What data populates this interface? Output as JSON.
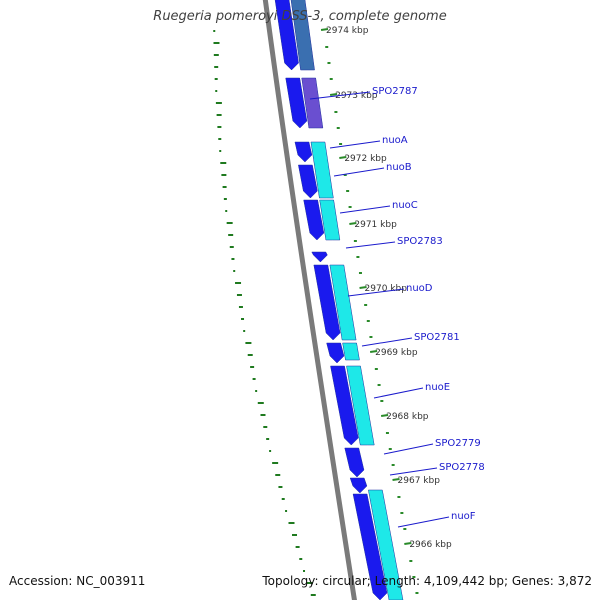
{
  "title": "Ruegeria pomeroyi DSS-3, complete genome",
  "accession": "Accession: NC_003911",
  "summary": "Topology: circular; Length: 4,109,442 bp; Genes: 3,872",
  "colors": {
    "backbone": "#7a7a7a",
    "forward_gene": "#1a1aee",
    "reverse_gene_a": "#1ee8e8",
    "reverse_gene_b": "#3a6fb0",
    "reverse_gene_c": "#6a4fd0",
    "gene_label": "#1a1acc",
    "tick_mark": "#2a8a2a",
    "tick_label": "#333333",
    "dot_track": "#1f7a1f"
  },
  "tick_labels": [
    "2974 kbp",
    "2973 kbp",
    "2972 kbp",
    "2971 kbp",
    "2970 kbp",
    "2969 kbp",
    "2968 kbp",
    "2967 kbp",
    "2966 kbp"
  ],
  "gene_labels": [
    "SPO2787",
    "nuoA",
    "nuoB",
    "nuoC",
    "SPO2783",
    "nuoD",
    "SPO2781",
    "nuoE",
    "SPO2779",
    "SPO2778",
    "nuoF"
  ]
}
